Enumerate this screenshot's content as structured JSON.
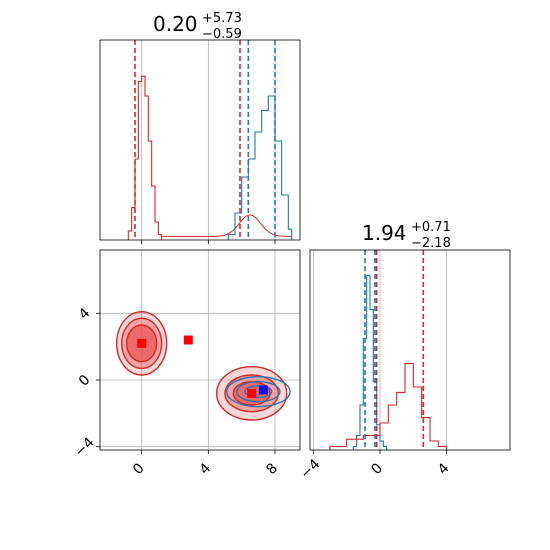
{
  "colors": {
    "red": "#d62728",
    "blue": "#1f77b4",
    "red_fill": "#f28b8b",
    "grid": "#b0b0b0",
    "marker_red": "#ff0000",
    "marker_blue": "#0000ff"
  },
  "chart_data": {
    "type": "corner",
    "parameters": [
      {
        "title": {
          "median": "0.20",
          "plus": "+5.73",
          "minus": "−0.59"
        },
        "axis_range": [
          -2.5,
          9.5
        ],
        "ticks": [
          {
            "value": 0,
            "label": "0"
          },
          {
            "value": 4,
            "label": "4"
          },
          {
            "value": 8,
            "label": "8"
          }
        ]
      },
      {
        "title": {
          "median": "1.94",
          "plus": "+0.71",
          "minus": "−2.18"
        },
        "axis_range": [
          -4.2,
          7.8
        ],
        "ticks": [
          {
            "value": -4,
            "label": "−4"
          },
          {
            "value": 0,
            "label": "0"
          },
          {
            "value": 4,
            "label": "4"
          }
        ]
      }
    ],
    "grid": true,
    "histograms": [
      {
        "parameter": 0,
        "series": [
          {
            "color": "red",
            "bin_edges": [
              -0.8,
              -0.6,
              -0.4,
              -0.2,
              0.0,
              0.2,
              0.4,
              0.6,
              0.8,
              1.0,
              1.2
            ],
            "counts": [
              0.05,
              0.18,
              0.45,
              0.88,
              0.91,
              0.8,
              0.55,
              0.3,
              0.1,
              0.03
            ],
            "tail": {
              "from": 1.2,
              "to": 9.0,
              "level": 0.02,
              "bump_center": 6.5,
              "bump_height": 0.12
            }
          },
          {
            "color": "blue",
            "bin_edges": [
              5.2,
              5.6,
              6.0,
              6.4,
              6.8,
              7.2,
              7.6,
              8.0,
              8.4,
              8.8,
              9.0
            ],
            "counts": [
              0.03,
              0.15,
              0.35,
              0.45,
              0.6,
              0.72,
              0.8,
              0.55,
              0.25,
              0.06
            ]
          }
        ],
        "quantile_lines": [
          {
            "value": -0.4,
            "color": "red"
          },
          {
            "value": 5.9,
            "color": "red"
          },
          {
            "value": 6.4,
            "color": "blue"
          },
          {
            "value": 8.0,
            "color": "blue"
          }
        ]
      },
      {
        "parameter": 1,
        "series": [
          {
            "color": "blue",
            "bin_edges": [
              -1.6,
              -1.4,
              -1.2,
              -1.0,
              -0.8,
              -0.6,
              -0.4,
              -0.2,
              0.0,
              0.2,
              0.4
            ],
            "counts": [
              0.02,
              0.08,
              0.25,
              0.62,
              0.97,
              0.78,
              0.38,
              0.14,
              0.05,
              0.02
            ]
          },
          {
            "color": "red",
            "bin_edges": [
              -3.0,
              -2.0,
              -1.0,
              0.0,
              0.5,
              1.0,
              1.5,
              2.0,
              2.5,
              3.0,
              3.5,
              4.0
            ],
            "counts": [
              0.02,
              0.06,
              0.08,
              0.15,
              0.25,
              0.32,
              0.48,
              0.35,
              0.18,
              0.05,
              0.02
            ]
          }
        ],
        "quantile_lines": [
          {
            "value": -0.9,
            "color": "blue"
          },
          {
            "value": -0.3,
            "color": "blue"
          },
          {
            "value": -0.2,
            "color": "red"
          },
          {
            "value": 2.6,
            "color": "red"
          }
        ]
      }
    ],
    "scatter_2d": {
      "contours": [
        {
          "color": "red",
          "center": [
            0.0,
            2.2
          ],
          "radii": [
            [
              1.5,
              1.9
            ],
            [
              1.2,
              1.5
            ],
            [
              0.9,
              1.1
            ]
          ]
        },
        {
          "color": "red",
          "center": [
            6.6,
            -0.8
          ],
          "radii": [
            [
              2.1,
              1.6
            ],
            [
              1.6,
              1.1
            ],
            [
              1.1,
              0.7
            ]
          ]
        },
        {
          "color": "blue",
          "center": [
            7.0,
            -0.7
          ],
          "radii": [
            [
              1.9,
              0.9
            ],
            [
              1.3,
              0.6
            ],
            [
              0.8,
              0.35
            ]
          ]
        }
      ],
      "markers": [
        {
          "x": 0.0,
          "y": 2.2,
          "color": "marker_red"
        },
        {
          "x": 2.8,
          "y": 2.4,
          "color": "marker_red"
        },
        {
          "x": 6.6,
          "y": -0.8,
          "color": "marker_red"
        },
        {
          "x": 7.3,
          "y": -0.6,
          "color": "marker_blue"
        }
      ]
    }
  }
}
